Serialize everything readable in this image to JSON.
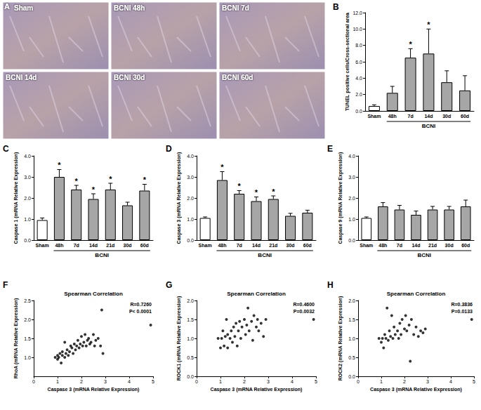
{
  "micrographs": {
    "panel_label": "A",
    "labels": [
      "Sham",
      "BCNI 48h",
      "BCNI 7d",
      "BCNI 14d",
      "BCNI 30d",
      "BCNI 60d"
    ]
  },
  "chart_data": [
    {
      "panel_label": "B",
      "type": "bar",
      "y_label": "TUNEL positive cells/Cross-sectional area",
      "categories": [
        "Sham",
        "48h",
        "7d",
        "14d",
        "30d",
        "60d"
      ],
      "group_label": "BCNI",
      "values": [
        0.6,
        2.2,
        6.5,
        7.0,
        3.5,
        2.5
      ],
      "errors": [
        0.15,
        0.8,
        1.1,
        3.0,
        1.4,
        1.8
      ],
      "annotations": [
        null,
        null,
        "*",
        "*",
        null,
        null
      ],
      "colors": [
        "#ffffff",
        "#a6a6a6",
        "#a6a6a6",
        "#a6a6a6",
        "#a6a6a6",
        "#a6a6a6"
      ],
      "ylim": [
        0,
        12
      ],
      "yticks": [
        {
          "value": 0,
          "label": "0.0"
        },
        {
          "value": 2,
          "label": "2.0"
        },
        {
          "value": 4,
          "label": "4.0"
        },
        {
          "value": 6,
          "label": "6.0"
        },
        {
          "value": 8,
          "label": "8.0"
        },
        {
          "value": 10,
          "label": "10.0"
        },
        {
          "value": 12,
          "label": "12.0"
        }
      ],
      "grid": false
    },
    {
      "panel_label": "C",
      "type": "bar",
      "y_label": "Caspase 1 (mRNA Relative Expression)",
      "categories": [
        "Sham",
        "48h",
        "7d",
        "14d",
        "21d",
        "30d",
        "60d"
      ],
      "group_label": "BCNI",
      "values": [
        0.95,
        3.0,
        2.4,
        1.95,
        2.4,
        1.65,
        2.35
      ],
      "errors": [
        0.1,
        0.35,
        0.2,
        0.25,
        0.3,
        0.15,
        0.3
      ],
      "annotations": [
        null,
        "*",
        "*",
        "*",
        "*",
        null,
        "*"
      ],
      "colors": [
        "#ffffff",
        "#a6a6a6",
        "#a6a6a6",
        "#a6a6a6",
        "#a6a6a6",
        "#a6a6a6",
        "#a6a6a6"
      ],
      "ylim": [
        0,
        4
      ],
      "yticks": [
        {
          "value": 0,
          "label": "0.0"
        },
        {
          "value": 1,
          "label": "1.0"
        },
        {
          "value": 2,
          "label": "2.0"
        },
        {
          "value": 3,
          "label": "3.0"
        },
        {
          "value": 4,
          "label": "4.0"
        }
      ],
      "grid": false
    },
    {
      "panel_label": "D",
      "type": "bar",
      "y_label": "Caspase 3 (mRNA Relative Expression)",
      "categories": [
        "Sham",
        "48h",
        "7d",
        "14d",
        "21d",
        "30d",
        "60d"
      ],
      "group_label": "BCNI",
      "values": [
        1.05,
        2.85,
        2.2,
        1.85,
        1.95,
        1.15,
        1.3
      ],
      "errors": [
        0.05,
        0.4,
        0.15,
        0.2,
        0.15,
        0.12,
        0.12
      ],
      "annotations": [
        null,
        "*",
        "*",
        "*",
        "*",
        null,
        null
      ],
      "colors": [
        "#ffffff",
        "#a6a6a6",
        "#a6a6a6",
        "#a6a6a6",
        "#a6a6a6",
        "#a6a6a6",
        "#a6a6a6"
      ],
      "ylim": [
        0,
        4
      ],
      "yticks": [
        {
          "value": 0,
          "label": "0.0"
        },
        {
          "value": 1,
          "label": "1.0"
        },
        {
          "value": 2,
          "label": "2.0"
        },
        {
          "value": 3,
          "label": "3.0"
        },
        {
          "value": 4,
          "label": "4.0"
        }
      ],
      "grid": false
    },
    {
      "panel_label": "E",
      "type": "bar",
      "y_label": "Caspase 9 (mRNA Relative Expression)",
      "categories": [
        "Sham",
        "48h",
        "7d",
        "14d",
        "21d",
        "30d",
        "60d"
      ],
      "group_label": "BCNI",
      "values": [
        1.05,
        1.6,
        1.45,
        1.2,
        1.45,
        1.45,
        1.6
      ],
      "errors": [
        0.05,
        0.18,
        0.2,
        0.18,
        0.15,
        0.15,
        0.3
      ],
      "annotations": [
        null,
        null,
        null,
        null,
        null,
        null,
        null
      ],
      "colors": [
        "#ffffff",
        "#a6a6a6",
        "#a6a6a6",
        "#a6a6a6",
        "#a6a6a6",
        "#a6a6a6",
        "#a6a6a6"
      ],
      "ylim": [
        0,
        4
      ],
      "yticks": [
        {
          "value": 0,
          "label": "0.0"
        },
        {
          "value": 1,
          "label": "1.0"
        },
        {
          "value": 2,
          "label": "2.0"
        },
        {
          "value": 3,
          "label": "3.0"
        },
        {
          "value": 4,
          "label": "4.0"
        }
      ],
      "grid": false
    },
    {
      "panel_label": "F",
      "type": "scatter",
      "title": "Spearman Correlation",
      "stats": [
        "R=0.7260",
        "P< 0.0001"
      ],
      "x_label": "Caspase 3 (mRNA Relative Expression)",
      "y_label": "RhoA (mRNA Relative Expression)",
      "x": [
        0.9,
        1.0,
        1.0,
        1.05,
        1.1,
        1.15,
        1.2,
        1.2,
        1.3,
        1.3,
        1.35,
        1.4,
        1.45,
        1.5,
        1.55,
        1.6,
        1.65,
        1.7,
        1.75,
        1.8,
        1.85,
        1.9,
        1.95,
        2.0,
        2.05,
        2.1,
        2.15,
        2.2,
        2.25,
        2.3,
        2.35,
        2.4,
        2.5,
        2.55,
        2.6,
        2.7,
        2.8,
        2.85,
        2.9,
        4.9
      ],
      "values": [
        1.0,
        0.95,
        1.05,
        1.0,
        1.1,
        0.85,
        1.05,
        1.15,
        1.0,
        1.4,
        1.1,
        1.2,
        1.05,
        1.15,
        1.3,
        1.25,
        1.1,
        1.35,
        1.2,
        1.3,
        1.45,
        1.25,
        1.35,
        1.55,
        1.3,
        1.4,
        1.6,
        1.3,
        1.45,
        1.5,
        1.35,
        1.4,
        1.6,
        1.3,
        1.45,
        1.5,
        1.3,
        2.25,
        1.1,
        1.85
      ],
      "color": "#000000",
      "marker": "circle",
      "xlim": [
        0,
        5
      ],
      "xticks": [
        0,
        1,
        2,
        3,
        4,
        5
      ],
      "ylim": [
        0.5,
        2.5
      ],
      "yticks": [
        {
          "value": 1,
          "label": "1.0"
        },
        {
          "value": 1.5,
          "label": "1.5"
        },
        {
          "value": 2,
          "label": "2.0"
        },
        {
          "value": 2.5,
          "label": "2.5"
        }
      ],
      "grid": false
    },
    {
      "panel_label": "G",
      "type": "scatter",
      "title": "Spearman Correlation",
      "stats": [
        "R=0.4600",
        "P=0.0032"
      ],
      "x_label": "Caspase 3 (mRNA Relative Expression)",
      "y_label": "ROCK1 (mRNA Relative Expression)",
      "x": [
        0.9,
        1.0,
        1.05,
        1.1,
        1.15,
        1.2,
        1.25,
        1.3,
        1.3,
        1.4,
        1.45,
        1.5,
        1.55,
        1.6,
        1.65,
        1.7,
        1.75,
        1.8,
        1.85,
        1.9,
        2.0,
        2.05,
        2.1,
        2.15,
        2.2,
        2.3,
        2.35,
        2.4,
        2.5,
        2.55,
        2.6,
        2.7,
        2.8,
        2.9,
        4.9
      ],
      "values": [
        1.0,
        0.75,
        1.0,
        1.2,
        0.8,
        1.05,
        1.5,
        0.75,
        1.1,
        1.0,
        1.2,
        0.9,
        1.3,
        1.05,
        1.4,
        0.8,
        1.2,
        1.45,
        1.0,
        1.3,
        1.5,
        1.1,
        1.35,
        1.8,
        1.2,
        1.45,
        0.95,
        1.6,
        1.3,
        1.5,
        1.2,
        1.4,
        1.05,
        1.5,
        1.5
      ],
      "color": "#000000",
      "marker": "circle",
      "xlim": [
        0,
        5
      ],
      "xticks": [
        0,
        1,
        2,
        3,
        4,
        5
      ],
      "ylim": [
        0,
        2
      ],
      "yticks": [
        {
          "value": 0,
          "label": "0.0"
        },
        {
          "value": 0.5,
          "label": "0.5"
        },
        {
          "value": 1,
          "label": "1.0"
        },
        {
          "value": 1.5,
          "label": "1.5"
        },
        {
          "value": 2,
          "label": "2.0"
        }
      ],
      "grid": false
    },
    {
      "panel_label": "H",
      "type": "scatter",
      "title": "Spearman Correlation",
      "stats": [
        "R=0.3836",
        "P=0.0133"
      ],
      "x_label": "Caspase 3 (mRNA Relative Expression)",
      "y_label": "ROCK2 (mRNA Relative Expression)",
      "x": [
        0.9,
        1.0,
        1.05,
        1.1,
        1.15,
        1.2,
        1.25,
        1.3,
        1.35,
        1.4,
        1.45,
        1.5,
        1.55,
        1.6,
        1.7,
        1.75,
        1.8,
        1.85,
        1.9,
        2.0,
        2.05,
        2.1,
        2.2,
        2.25,
        2.3,
        2.4,
        2.5,
        2.6,
        2.7,
        2.8,
        2.9,
        4.9
      ],
      "values": [
        1.0,
        0.9,
        1.0,
        0.75,
        1.1,
        1.0,
        1.8,
        0.95,
        1.2,
        1.05,
        1.6,
        1.0,
        1.3,
        1.1,
        1.2,
        1.0,
        1.4,
        1.1,
        1.5,
        1.25,
        1.6,
        1.2,
        1.35,
        0.4,
        1.5,
        1.1,
        1.3,
        1.05,
        1.2,
        1.15,
        1.25,
        1.5
      ],
      "color": "#000000",
      "marker": "circle",
      "xlim": [
        0,
        5
      ],
      "xticks": [
        0,
        1,
        2,
        3,
        4,
        5
      ],
      "ylim": [
        0,
        2
      ],
      "yticks": [
        {
          "value": 0,
          "label": "0.0"
        },
        {
          "value": 0.5,
          "label": "0.5"
        },
        {
          "value": 1,
          "label": "1.0"
        },
        {
          "value": 1.5,
          "label": "1.5"
        },
        {
          "value": 2,
          "label": "2.0"
        }
      ],
      "grid": false
    }
  ]
}
